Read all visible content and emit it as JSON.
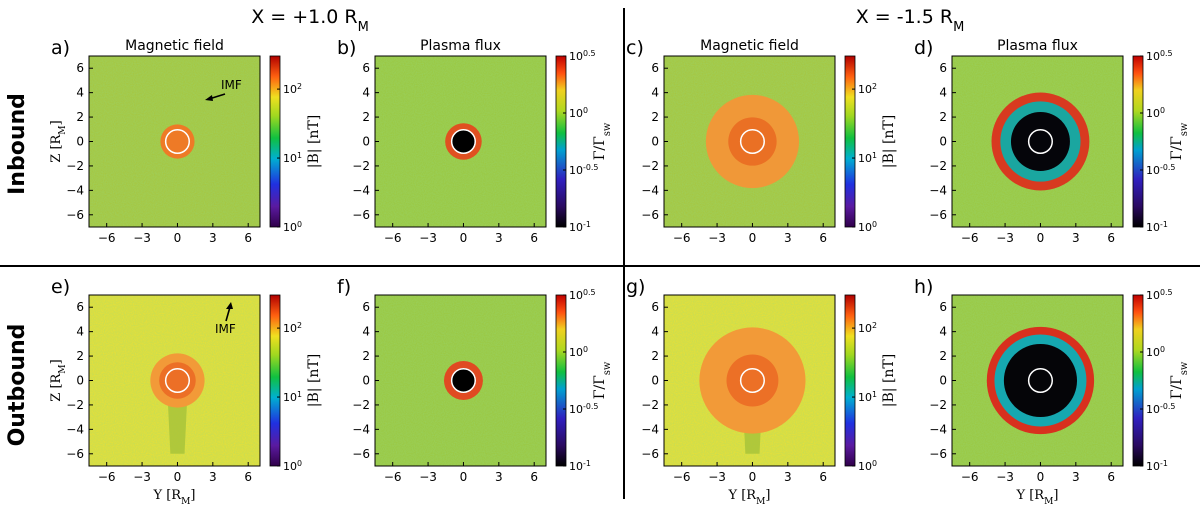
{
  "columns": {
    "left": "X = +1.0 Rₘ",
    "right": "X = -1.5 Rₘ"
  },
  "rows": [
    "Inbound",
    "Outbound"
  ],
  "chart_data": [
    {
      "type": "heatmap",
      "panel": "a)",
      "title": "Magnetic field",
      "quantity": "|B| [nT]",
      "row": "Inbound",
      "column": "X = +1.0 R_M",
      "cbar_ticks": [
        "10^2",
        "10^1",
        "10^0"
      ],
      "cbar_range": [
        1,
        300
      ],
      "xlabel": "",
      "ylabel": "Z [R_M]",
      "xlim": [
        -7.5,
        7
      ],
      "ylim": [
        -7,
        7
      ],
      "xticks": [
        -6,
        -3,
        0,
        3,
        6
      ],
      "yticks": [
        6,
        4,
        2,
        0,
        -2,
        -4,
        -6
      ],
      "annotation": "IMF"
    },
    {
      "type": "heatmap",
      "panel": "b)",
      "title": "Plasma flux",
      "quantity": "Γ/Γ_sw",
      "row": "Inbound",
      "column": "X = +1.0 R_M",
      "cbar_ticks": [
        "10^0.5",
        "10^0",
        "10^-0.5",
        "10^-1"
      ],
      "cbar_range": [
        0.1,
        3.16
      ],
      "xlabel": "",
      "ylabel": "",
      "xlim": [
        -7.5,
        7
      ],
      "ylim": [
        -7,
        7
      ],
      "xticks": [
        -6,
        -3,
        0,
        3,
        6
      ],
      "yticks": [
        6,
        4,
        2,
        0,
        -2,
        -4,
        -6
      ]
    },
    {
      "type": "heatmap",
      "panel": "c)",
      "title": "Magnetic field",
      "quantity": "|B| [nT]",
      "row": "Inbound",
      "column": "X = -1.5 R_M",
      "cbar_ticks": [
        "10^2",
        "10^1",
        "10^0"
      ],
      "cbar_range": [
        1,
        300
      ],
      "xlabel": "",
      "ylabel": "",
      "xlim": [
        -7.5,
        7
      ],
      "ylim": [
        -7,
        7
      ],
      "xticks": [
        -6,
        -3,
        0,
        3,
        6
      ],
      "yticks": [
        6,
        4,
        2,
        0,
        -2,
        -4,
        -6
      ]
    },
    {
      "type": "heatmap",
      "panel": "d)",
      "title": "Plasma flux",
      "quantity": "Γ/Γ_sw",
      "row": "Inbound",
      "column": "X = -1.5 R_M",
      "cbar_ticks": [
        "10^0.5",
        "10^0",
        "10^-0.5",
        "10^-1"
      ],
      "cbar_range": [
        0.1,
        3.16
      ],
      "xlabel": "",
      "ylabel": "",
      "xlim": [
        -7.5,
        7
      ],
      "ylim": [
        -7,
        7
      ],
      "xticks": [
        -6,
        -3,
        0,
        3,
        6
      ],
      "yticks": [
        6,
        4,
        2,
        0,
        -2,
        -4,
        -6
      ]
    },
    {
      "type": "heatmap",
      "panel": "e)",
      "title": "",
      "quantity": "|B| [nT]",
      "row": "Outbound",
      "column": "X = +1.0 R_M",
      "cbar_ticks": [
        "10^2",
        "10^1",
        "10^0"
      ],
      "cbar_range": [
        1,
        300
      ],
      "xlabel": "Y [R_M]",
      "ylabel": "Z [R_M]",
      "xlim": [
        -7.5,
        7
      ],
      "ylim": [
        -7,
        7
      ],
      "xticks": [
        -6,
        -3,
        0,
        3,
        6
      ],
      "yticks": [
        6,
        4,
        2,
        0,
        -2,
        -4,
        -6
      ],
      "annotation": "IMF"
    },
    {
      "type": "heatmap",
      "panel": "f)",
      "title": "",
      "quantity": "Γ/Γ_sw",
      "row": "Outbound",
      "column": "X = +1.0 R_M",
      "cbar_ticks": [
        "10^0.5",
        "10^0",
        "10^-0.5",
        "10^-1"
      ],
      "cbar_range": [
        0.1,
        3.16
      ],
      "xlabel": "",
      "ylabel": "",
      "xlim": [
        -7.5,
        7
      ],
      "ylim": [
        -7,
        7
      ],
      "xticks": [
        -6,
        -3,
        0,
        3,
        6
      ],
      "yticks": [
        6,
        4,
        2,
        0,
        -2,
        -4,
        -6
      ]
    },
    {
      "type": "heatmap",
      "panel": "g)",
      "title": "",
      "quantity": "|B| [nT]",
      "row": "Outbound",
      "column": "X = -1.5 R_M",
      "cbar_ticks": [
        "10^2",
        "10^1",
        "10^0"
      ],
      "cbar_range": [
        1,
        300
      ],
      "xlabel": "Y [R_M]",
      "ylabel": "",
      "xlim": [
        -7.5,
        7
      ],
      "ylim": [
        -7,
        7
      ],
      "xticks": [
        -6,
        -3,
        0,
        3,
        6
      ],
      "yticks": [
        6,
        4,
        2,
        0,
        -2,
        -4,
        -6
      ]
    },
    {
      "type": "heatmap",
      "panel": "h)",
      "title": "",
      "quantity": "Γ/Γ_sw",
      "row": "Outbound",
      "column": "X = -1.5 R_M",
      "cbar_ticks": [
        "10^0.5",
        "10^0",
        "10^-0.5",
        "10^-1"
      ],
      "cbar_range": [
        0.1,
        3.16
      ],
      "xlabel": "Y [R_M]",
      "ylabel": "",
      "xlim": [
        -7.5,
        7
      ],
      "ylim": [
        -7,
        7
      ],
      "xticks": [
        -6,
        -3,
        0,
        3,
        6
      ],
      "yticks": [
        6,
        4,
        2,
        0,
        -2,
        -4,
        -6
      ]
    }
  ]
}
